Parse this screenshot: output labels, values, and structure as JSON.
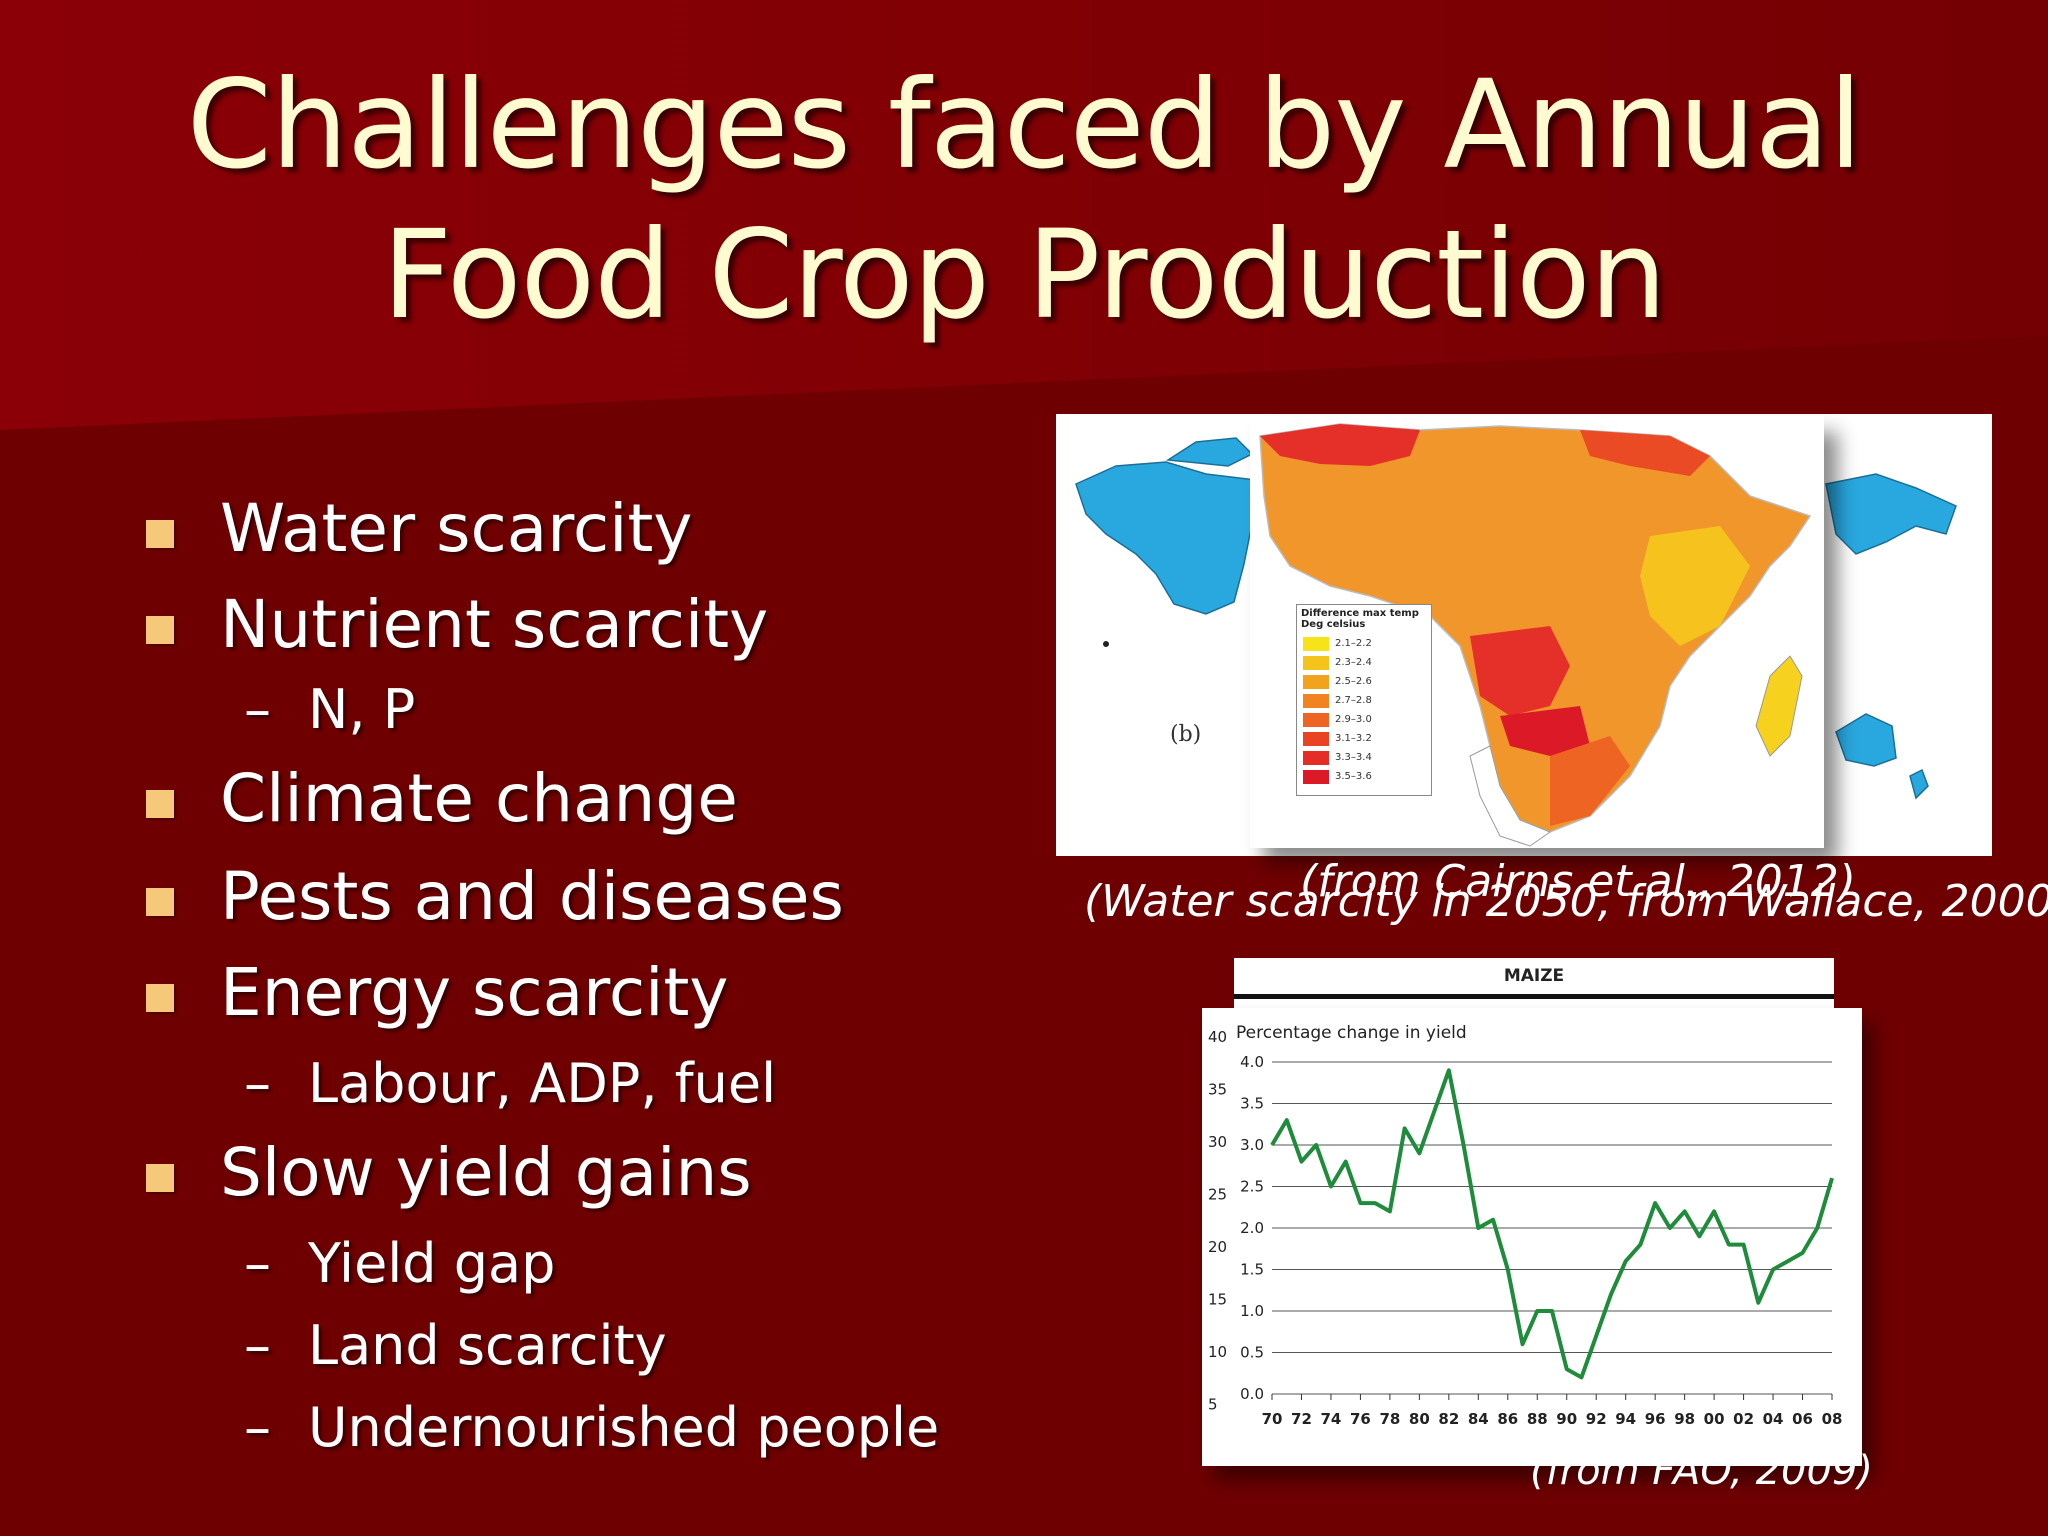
{
  "slide": {
    "title_line1": "Challenges faced by Annual",
    "title_line2": "Food Crop Production",
    "colors": {
      "background": "#6f0002",
      "title": "#fffbd0",
      "bullet": "#f6c87a",
      "chart_line": "#1e8c3a"
    }
  },
  "bullets": [
    {
      "text": "Water scarcity",
      "level": 1
    },
    {
      "text": "Nutrient scarcity",
      "level": 1
    },
    {
      "text": "N, P",
      "level": 2
    },
    {
      "text": "Climate change",
      "level": 1
    },
    {
      "text": "Pests and diseases",
      "level": 1
    },
    {
      "text": "Energy scarcity",
      "level": 1
    },
    {
      "text": "Labour, ADP, fuel",
      "level": 2
    },
    {
      "text": "Slow yield gains",
      "level": 1
    },
    {
      "text": "Yield gap",
      "level": 2
    },
    {
      "text": "Land scarcity",
      "level": 2
    },
    {
      "text": "Undernourished people",
      "level": 2
    }
  ],
  "dash_symbol": "–",
  "map": {
    "panel_label": "(b)",
    "legend_title1": "Difference max temp",
    "legend_title2": "Deg celsius",
    "legend_items": [
      {
        "label": "2.1–2.2",
        "color": "#f6e31a"
      },
      {
        "label": "2.3–2.4",
        "color": "#f5c41c"
      },
      {
        "label": "2.5–2.6",
        "color": "#f3a21e"
      },
      {
        "label": "2.7–2.8",
        "color": "#f18420"
      },
      {
        "label": "2.9–3.0",
        "color": "#ee6422"
      },
      {
        "label": "3.1–3.2",
        "color": "#ea4323"
      },
      {
        "label": "3.3–3.4",
        "color": "#e52d25"
      },
      {
        "label": "3.5–3.6",
        "color": "#dc1a27"
      }
    ]
  },
  "captions": {
    "map_inner": "(from Cairns et al., 2012)",
    "map_outer": "(Water scarcity in 2050, from Wallace, 2000)",
    "chart": "(from FAO, 2009)"
  },
  "chart_data": {
    "type": "line",
    "title": "MAIZE",
    "ylabel": "Percentage change in yield",
    "xlabel": "",
    "ylim": [
      0,
      4.0
    ],
    "yticks": [
      "0.0",
      "0.5",
      "1.0",
      "1.5",
      "2.0",
      "2.5",
      "3.0",
      "3.5",
      "4.0"
    ],
    "xticks": [
      "70",
      "72",
      "74",
      "76",
      "78",
      "80",
      "82",
      "84",
      "86",
      "88",
      "90",
      "92",
      "94",
      "96",
      "98",
      "00",
      "02",
      "04",
      "06",
      "08"
    ],
    "behind_ticks": [
      "40",
      "35",
      "30",
      "25",
      "20",
      "15",
      "10",
      "5"
    ],
    "grid": true,
    "x": [
      1970,
      1971,
      1972,
      1973,
      1974,
      1975,
      1976,
      1977,
      1978,
      1979,
      1980,
      1981,
      1982,
      1983,
      1984,
      1985,
      1986,
      1987,
      1988,
      1989,
      1990,
      1991,
      1992,
      1993,
      1994,
      1995,
      1996,
      1997,
      1998,
      1999,
      2000,
      2001,
      2002,
      2003,
      2004,
      2005,
      2006,
      2007,
      2008
    ],
    "values": [
      3.0,
      3.3,
      2.8,
      3.0,
      2.5,
      2.8,
      2.3,
      2.3,
      2.2,
      3.2,
      2.9,
      3.4,
      3.9,
      3.0,
      2.0,
      2.1,
      1.5,
      0.6,
      1.0,
      1.0,
      0.3,
      0.2,
      0.7,
      1.2,
      1.6,
      1.8,
      2.3,
      2.0,
      2.2,
      1.9,
      2.2,
      1.8,
      1.8,
      1.1,
      1.5,
      1.6,
      1.7,
      2.0,
      2.6
    ]
  }
}
